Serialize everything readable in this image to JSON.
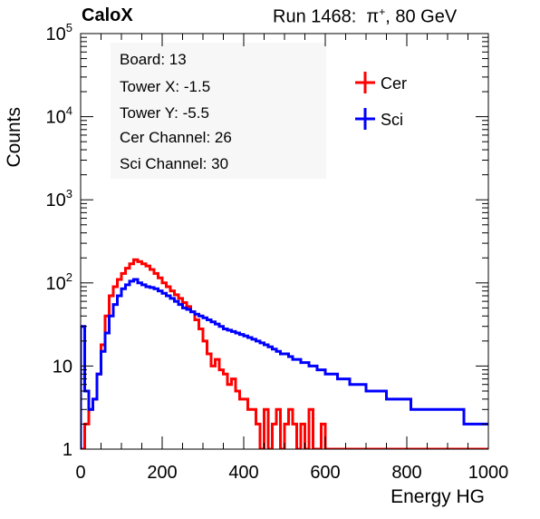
{
  "header": {
    "experiment": "CaloX",
    "run_text": "Run 1468:",
    "particle_symbol": "π",
    "particle_charge": "+",
    "beam_energy": ", 80 GeV"
  },
  "info_box": {
    "lines": [
      "Board: 13",
      "Tower X: -1.5",
      "Tower Y: -5.5",
      "Cer Channel: 26",
      "Sci Channel: 30"
    ]
  },
  "colors": {
    "cer": "#ff0000",
    "sci": "#0000ff",
    "frame": "#000000",
    "info_bg": "#f7f7f7"
  },
  "chart_data": {
    "type": "line",
    "xlabel": "Energy HG",
    "ylabel": "Counts",
    "xlim": [
      0,
      1000
    ],
    "ylim": [
      1,
      100000
    ],
    "y_scale": "log",
    "x_ticks": [
      {
        "value": 0,
        "label": "0"
      },
      {
        "value": 200,
        "label": "200"
      },
      {
        "value": 400,
        "label": "400"
      },
      {
        "value": 600,
        "label": "600"
      },
      {
        "value": 800,
        "label": "800"
      },
      {
        "value": 1000,
        "label": "1000"
      }
    ],
    "y_ticks": [
      {
        "value": 1,
        "base": "1",
        "exp": ""
      },
      {
        "value": 10,
        "base": "10",
        "exp": ""
      },
      {
        "value": 100,
        "base": "10",
        "exp": "2"
      },
      {
        "value": 1000,
        "base": "10",
        "exp": "3"
      },
      {
        "value": 10000,
        "base": "10",
        "exp": "4"
      },
      {
        "value": 100000,
        "base": "10",
        "exp": "5"
      }
    ],
    "legend": {
      "placement": "top-right",
      "entries": [
        "Cer",
        "Sci"
      ]
    },
    "grid": false,
    "series": [
      {
        "name": "Cer",
        "color": "#ff0000",
        "x": [
          0,
          10,
          20,
          30,
          40,
          50,
          60,
          70,
          80,
          90,
          100,
          110,
          120,
          130,
          140,
          150,
          160,
          170,
          180,
          190,
          200,
          210,
          220,
          230,
          240,
          250,
          260,
          270,
          280,
          290,
          300,
          310,
          320,
          330,
          340,
          350,
          360,
          370,
          380,
          390,
          400,
          410,
          420,
          430,
          440,
          450,
          460,
          470,
          480,
          490,
          500,
          510,
          520,
          530,
          540,
          550,
          560,
          570,
          580,
          590,
          600,
          610,
          620,
          630,
          640,
          650,
          660,
          670,
          680,
          690,
          700,
          710,
          720,
          730,
          740,
          750,
          760,
          770,
          780,
          790,
          800,
          810,
          820,
          830,
          840,
          850,
          860,
          870,
          880,
          890,
          900,
          910,
          920,
          930,
          940,
          950,
          960,
          970,
          980,
          990,
          1000
        ],
        "y": [
          1,
          2,
          3,
          4,
          8,
          18,
          40,
          70,
          90,
          110,
          130,
          150,
          170,
          190,
          180,
          170,
          160,
          145,
          130,
          115,
          100,
          90,
          80,
          72,
          65,
          58,
          52,
          45,
          36,
          28,
          20,
          14,
          10,
          12,
          9,
          8,
          6,
          7,
          5,
          4,
          4,
          3,
          3,
          2,
          1,
          3,
          1,
          2,
          3,
          1,
          2,
          3,
          2,
          1,
          2,
          1,
          3,
          1,
          1,
          2,
          1,
          1,
          1,
          1,
          1,
          1,
          1,
          1,
          1,
          1,
          1,
          1,
          1,
          1,
          1,
          1,
          1,
          1,
          1,
          1,
          1,
          1,
          1,
          1,
          1,
          1,
          1,
          1,
          1,
          1,
          1,
          1,
          1,
          1,
          1,
          1,
          1,
          1,
          1,
          1,
          1
        ]
      },
      {
        "name": "Sci",
        "color": "#0000ff",
        "x": [
          0,
          10,
          20,
          30,
          40,
          50,
          60,
          70,
          80,
          90,
          100,
          110,
          120,
          130,
          140,
          150,
          160,
          170,
          180,
          190,
          200,
          210,
          220,
          230,
          240,
          250,
          260,
          270,
          280,
          290,
          300,
          310,
          320,
          330,
          340,
          350,
          360,
          370,
          380,
          390,
          400,
          410,
          420,
          430,
          440,
          450,
          460,
          470,
          480,
          490,
          500,
          510,
          520,
          530,
          540,
          550,
          560,
          570,
          580,
          590,
          600,
          610,
          620,
          630,
          640,
          650,
          660,
          670,
          680,
          690,
          700,
          710,
          720,
          730,
          740,
          750,
          760,
          770,
          780,
          790,
          800,
          810,
          820,
          830,
          840,
          850,
          860,
          870,
          880,
          890,
          900,
          910,
          920,
          930,
          940,
          950,
          960,
          970,
          980,
          990,
          1000
        ],
        "y": [
          30,
          5,
          3,
          4,
          8,
          15,
          25,
          40,
          55,
          70,
          85,
          95,
          105,
          110,
          100,
          95,
          90,
          88,
          85,
          80,
          75,
          70,
          65,
          60,
          55,
          50,
          48,
          45,
          42,
          40,
          38,
          36,
          34,
          32,
          30,
          28,
          27,
          26,
          25,
          24,
          23,
          22,
          21,
          20,
          19,
          18,
          17,
          16,
          15,
          14,
          14,
          13,
          12,
          12,
          11,
          11,
          10,
          10,
          9,
          9,
          8,
          8,
          8,
          7,
          7,
          7,
          6,
          6,
          6,
          6,
          5,
          5,
          5,
          5,
          5,
          4,
          4,
          4,
          4,
          4,
          4,
          3,
          3,
          3,
          3,
          3,
          3,
          3,
          3,
          3,
          3,
          3,
          3,
          3,
          2,
          2,
          2,
          2,
          2,
          2,
          2
        ]
      }
    ]
  }
}
